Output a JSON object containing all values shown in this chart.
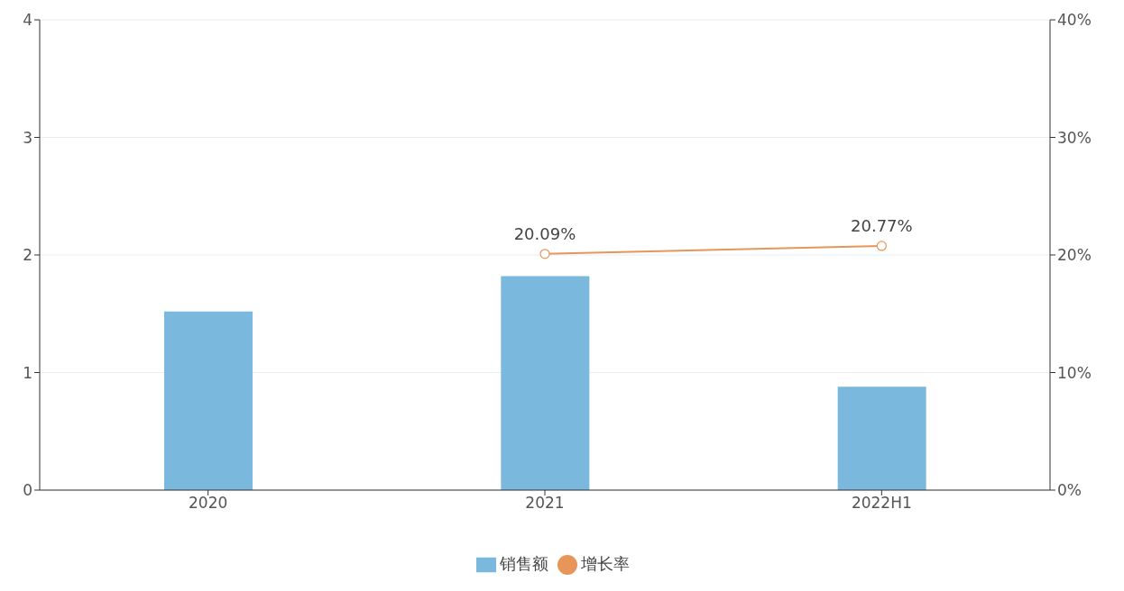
{
  "chart_data": {
    "type": "bar",
    "categories": [
      "2020",
      "2021",
      "2022H1"
    ],
    "series": [
      {
        "name": "销售额",
        "color": "#7ab8de",
        "values": [
          1.52,
          1.82,
          0.88
        ]
      },
      {
        "name": "增长率",
        "type": "line",
        "axis": "y2",
        "color": "#e8955a",
        "marker": "circle",
        "values": [
          null,
          20.09,
          20.77
        ],
        "value_labels": [
          null,
          "20.09%",
          "20.77%"
        ]
      }
    ],
    "ylim": [
      0,
      4
    ],
    "yticks": [
      0,
      1,
      2,
      3,
      4
    ],
    "y2lim": [
      0,
      40
    ],
    "y2ticks": [
      {
        "value": 0,
        "label": "0%"
      },
      {
        "value": 10,
        "label": "10%"
      },
      {
        "value": 20,
        "label": "20%"
      },
      {
        "value": 30,
        "label": "30%"
      },
      {
        "value": 40,
        "label": "40%"
      }
    ],
    "grid": "y",
    "legend": "bottom"
  }
}
